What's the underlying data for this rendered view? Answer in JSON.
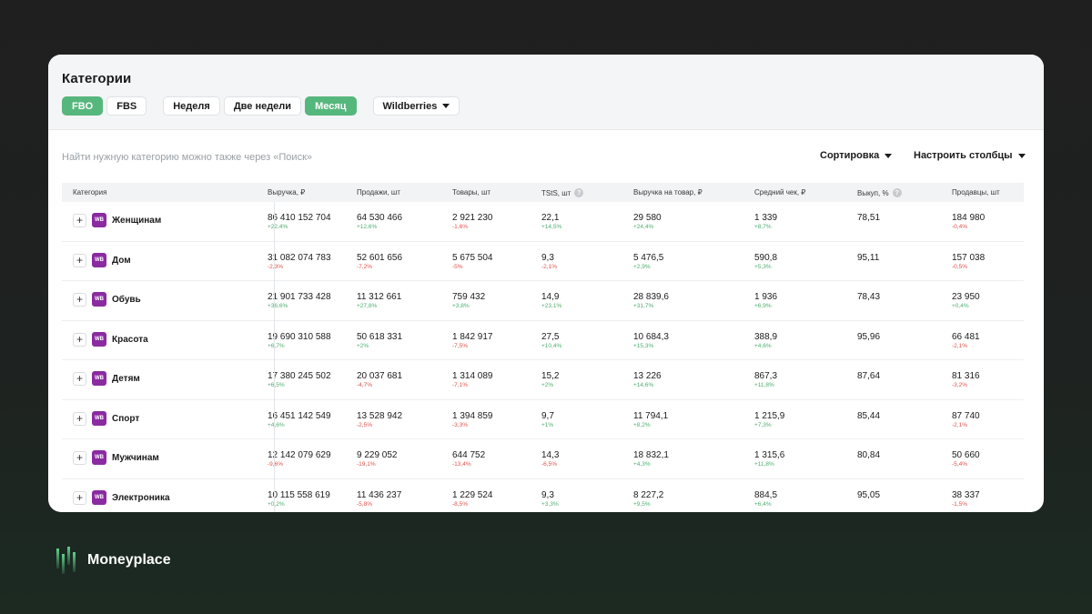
{
  "header": {
    "title": "Категории",
    "fulfillment": [
      "FBO",
      "FBS"
    ],
    "periods": [
      "Неделя",
      "Две недели",
      "Месяц"
    ],
    "marketplace": "Wildberries"
  },
  "toolbar": {
    "hint": "Найти нужную категорию можно также через «Поиск»",
    "sort_label": "Сортировка",
    "columns_label": "Настроить столбцы"
  },
  "table": {
    "columns": [
      "Категория",
      "Выручка, ₽",
      "Продажи, шт",
      "Товары, шт",
      "TStS, шт",
      "Выручка на товар, ₽",
      "Средний чек, ₽",
      "Выкуп, %",
      "Продавцы, шт"
    ],
    "badge": "WB",
    "rows": [
      {
        "name": "Женщинам",
        "cells": [
          [
            "86 410 152 704",
            "+22,4%",
            "pos"
          ],
          [
            "64 530 466",
            "+12,6%",
            "pos"
          ],
          [
            "2 921 230",
            "-1,6%",
            "neg"
          ],
          [
            "22,1",
            "+14,5%",
            "pos"
          ],
          [
            "29 580",
            "+24,4%",
            "pos"
          ],
          [
            "1 339",
            "+8,7%",
            "pos"
          ],
          [
            "78,51",
            "",
            ""
          ],
          [
            "184 980",
            "-0,4%",
            "neg"
          ]
        ]
      },
      {
        "name": "Дом",
        "cells": [
          [
            "31 082 074 783",
            "-2,3%",
            "neg"
          ],
          [
            "52 601 656",
            "-7,2%",
            "neg"
          ],
          [
            "5 675 504",
            "-5%",
            "neg"
          ],
          [
            "9,3",
            "-2,1%",
            "neg"
          ],
          [
            "5 476,5",
            "+2,9%",
            "pos"
          ],
          [
            "590,8",
            "+5,3%",
            "pos"
          ],
          [
            "95,11",
            "",
            ""
          ],
          [
            "157 038",
            "-0,5%",
            "neg"
          ]
        ]
      },
      {
        "name": "Обувь",
        "cells": [
          [
            "21 901 733 428",
            "+36,6%",
            "pos"
          ],
          [
            "11 312 661",
            "+27,8%",
            "pos"
          ],
          [
            "759 432",
            "+3,8%",
            "pos"
          ],
          [
            "14,9",
            "+23,1%",
            "pos"
          ],
          [
            "28 839,6",
            "+31,7%",
            "pos"
          ],
          [
            "1 936",
            "+6,9%",
            "pos"
          ],
          [
            "78,43",
            "",
            ""
          ],
          [
            "23 950",
            "+0,4%",
            "pos"
          ]
        ]
      },
      {
        "name": "Красота",
        "cells": [
          [
            "19 690 310 588",
            "+6,7%",
            "pos"
          ],
          [
            "50 618 331",
            "+2%",
            "pos"
          ],
          [
            "1 842 917",
            "-7,5%",
            "neg"
          ],
          [
            "27,5",
            "+10,4%",
            "pos"
          ],
          [
            "10 684,3",
            "+15,3%",
            "pos"
          ],
          [
            "388,9",
            "+4,6%",
            "pos"
          ],
          [
            "95,96",
            "",
            ""
          ],
          [
            "66 481",
            "-2,1%",
            "neg"
          ]
        ]
      },
      {
        "name": "Детям",
        "cells": [
          [
            "17 380 245 502",
            "+6,5%",
            "pos"
          ],
          [
            "20 037 681",
            "-4,7%",
            "neg"
          ],
          [
            "1 314 089",
            "-7,1%",
            "neg"
          ],
          [
            "15,2",
            "+2%",
            "pos"
          ],
          [
            "13 226",
            "+14,6%",
            "pos"
          ],
          [
            "867,3",
            "+11,8%",
            "pos"
          ],
          [
            "87,64",
            "",
            ""
          ],
          [
            "81 316",
            "-3,2%",
            "neg"
          ]
        ]
      },
      {
        "name": "Спорт",
        "cells": [
          [
            "16 451 142 549",
            "+4,6%",
            "pos"
          ],
          [
            "13 528 942",
            "-2,5%",
            "neg"
          ],
          [
            "1 394 859",
            "-3,3%",
            "neg"
          ],
          [
            "9,7",
            "+1%",
            "pos"
          ],
          [
            "11 794,1",
            "+8,2%",
            "pos"
          ],
          [
            "1 215,9",
            "+7,3%",
            "pos"
          ],
          [
            "85,44",
            "",
            ""
          ],
          [
            "87 740",
            "-2,1%",
            "neg"
          ]
        ]
      },
      {
        "name": "Мужчинам",
        "cells": [
          [
            "12 142 079 629",
            "-9,6%",
            "neg"
          ],
          [
            "9 229 052",
            "-19,1%",
            "neg"
          ],
          [
            "644 752",
            "-13,4%",
            "neg"
          ],
          [
            "14,3",
            "-6,5%",
            "neg"
          ],
          [
            "18 832,1",
            "+4,3%",
            "pos"
          ],
          [
            "1 315,6",
            "+11,8%",
            "pos"
          ],
          [
            "80,84",
            "",
            ""
          ],
          [
            "50 660",
            "-5,4%",
            "neg"
          ]
        ]
      },
      {
        "name": "Электроника",
        "cells": [
          [
            "10 115 558 619",
            "+0,2%",
            "pos"
          ],
          [
            "11 436 237",
            "-5,8%",
            "neg"
          ],
          [
            "1 229 524",
            "-8,5%",
            "neg"
          ],
          [
            "9,3",
            "+3,3%",
            "pos"
          ],
          [
            "8 227,2",
            "+9,5%",
            "pos"
          ],
          [
            "884,5",
            "+6,4%",
            "pos"
          ],
          [
            "95,05",
            "",
            ""
          ],
          [
            "38 337",
            "-1,5%",
            "neg"
          ]
        ]
      }
    ]
  },
  "brand": {
    "name": "Moneyplace",
    "accent": "#56b77d"
  }
}
